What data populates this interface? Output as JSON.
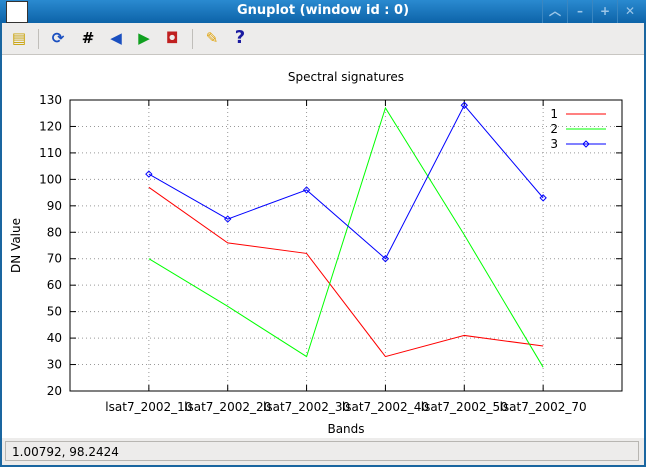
{
  "window": {
    "title": "Gnuplot (window id : 0)",
    "buttons": [
      "shade-up",
      "minimize",
      "maximize",
      "close"
    ]
  },
  "toolbar": {
    "icons": [
      "copy-clipboard",
      "replot",
      "grid",
      "zoom-back",
      "zoom-forward",
      "autoscale",
      "options",
      "help"
    ]
  },
  "status": {
    "coords": "1.00792,  98.2424"
  },
  "chart_data": {
    "type": "line",
    "title": "Spectral signatures",
    "xlabel": "Bands",
    "ylabel": "DN Value",
    "x": [
      1,
      2,
      3,
      4,
      5,
      6
    ],
    "xlim": [
      0,
      7
    ],
    "ylim": [
      20,
      130
    ],
    "yticks": [
      20,
      30,
      40,
      50,
      60,
      70,
      80,
      90,
      100,
      110,
      120,
      130
    ],
    "xticklabels": [
      "lsat7_2002_10",
      "lsat7_2002_20",
      "lsat7_2002_30",
      "lsat7_2002_40",
      "lsat7_2002_50",
      "lsat7_2002_70"
    ],
    "grid": true,
    "legend_position": "top-right",
    "series": [
      {
        "name": "1",
        "color": "#ff0000",
        "marker": "none",
        "values": [
          97,
          76,
          72,
          33,
          41,
          37
        ]
      },
      {
        "name": "2",
        "color": "#00ff00",
        "marker": "none",
        "values": [
          70,
          52,
          33,
          127,
          79,
          29
        ]
      },
      {
        "name": "3",
        "color": "#0000ff",
        "marker": "diamond",
        "values": [
          102,
          85,
          96,
          70,
          128,
          93
        ]
      }
    ]
  }
}
